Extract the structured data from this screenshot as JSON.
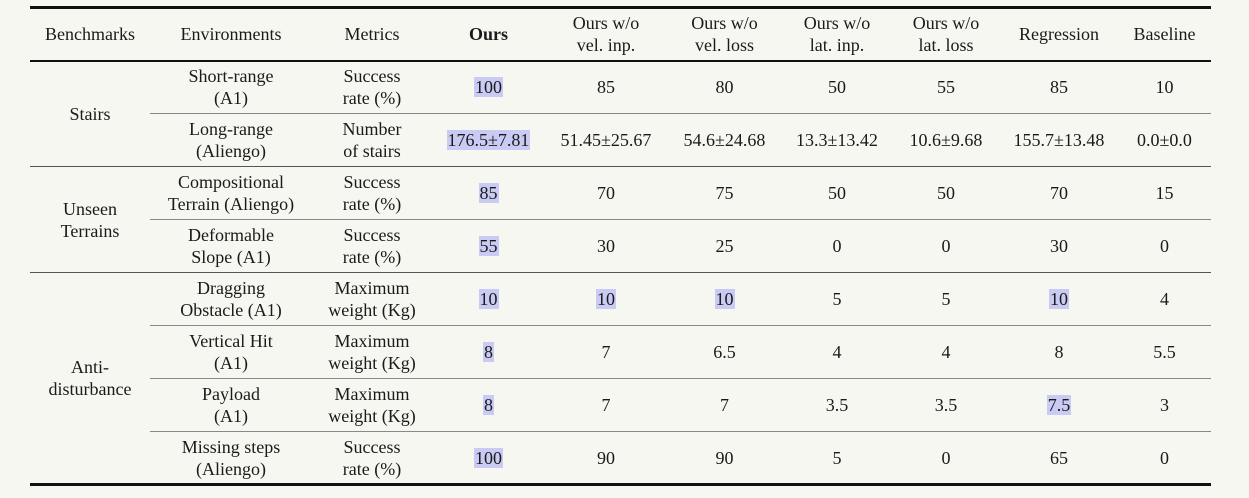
{
  "table": {
    "columns": [
      [
        "Benchmarks"
      ],
      [
        "Environments"
      ],
      [
        "Metrics"
      ],
      [
        "Ours"
      ],
      [
        "Ours w/o",
        "vel. inp."
      ],
      [
        "Ours w/o",
        "vel. loss"
      ],
      [
        "Ours w/o",
        "lat. inp."
      ],
      [
        "Ours w/o",
        "lat. loss"
      ],
      [
        "Regression"
      ],
      [
        "Baseline"
      ]
    ],
    "bold_column": 3,
    "groups": [
      {
        "name": [
          "Stairs"
        ],
        "rows": [
          {
            "environment": [
              "Short-range",
              "(A1)"
            ],
            "metric": [
              "Success",
              "rate (%)"
            ],
            "values": [
              "100",
              "85",
              "80",
              "50",
              "55",
              "85",
              "10"
            ],
            "highlighted": [
              0
            ]
          },
          {
            "environment": [
              "Long-range",
              "(Aliengo)"
            ],
            "metric": [
              "Number",
              "of stairs"
            ],
            "values": [
              "176.5±7.81",
              "51.45±25.67",
              "54.6±24.68",
              "13.3±13.42",
              "10.6±9.68",
              "155.7±13.48",
              "0.0±0.0"
            ],
            "highlighted": [
              0
            ]
          }
        ]
      },
      {
        "name": [
          "Unseen",
          "Terrains"
        ],
        "rows": [
          {
            "environment": [
              "Compositional",
              "Terrain (Aliengo)"
            ],
            "metric": [
              "Success",
              "rate (%)"
            ],
            "values": [
              "85",
              "70",
              "75",
              "50",
              "50",
              "70",
              "15"
            ],
            "highlighted": [
              0
            ]
          },
          {
            "environment": [
              "Deformable",
              "Slope (A1)"
            ],
            "metric": [
              "Success",
              "rate (%)"
            ],
            "values": [
              "55",
              "30",
              "25",
              "0",
              "0",
              "30",
              "0"
            ],
            "highlighted": [
              0
            ]
          }
        ]
      },
      {
        "name": [
          "Anti-",
          "disturbance"
        ],
        "rows": [
          {
            "environment": [
              "Dragging",
              "Obstacle (A1)"
            ],
            "metric": [
              "Maximum",
              "weight (Kg)"
            ],
            "values": [
              "10",
              "10",
              "10",
              "5",
              "5",
              "10",
              "4"
            ],
            "highlighted": [
              0,
              1,
              2,
              5
            ]
          },
          {
            "environment": [
              "Vertical Hit",
              "(A1)"
            ],
            "metric": [
              "Maximum",
              "weight (Kg)"
            ],
            "values": [
              "8",
              "7",
              "6.5",
              "4",
              "4",
              "8",
              "5.5"
            ],
            "highlighted": [
              0
            ]
          },
          {
            "environment": [
              "Payload",
              "(A1)"
            ],
            "metric": [
              "Maximum",
              "weight (Kg)"
            ],
            "values": [
              "8",
              "7",
              "7",
              "3.5",
              "3.5",
              "7.5",
              "3"
            ],
            "highlighted": [
              0,
              5
            ]
          },
          {
            "environment": [
              "Missing steps",
              "(Aliengo)"
            ],
            "metric": [
              "Success",
              "rate (%)"
            ],
            "values": [
              "100",
              "90",
              "90",
              "5",
              "0",
              "65",
              "0"
            ],
            "highlighted": [
              0
            ]
          }
        ]
      }
    ]
  }
}
